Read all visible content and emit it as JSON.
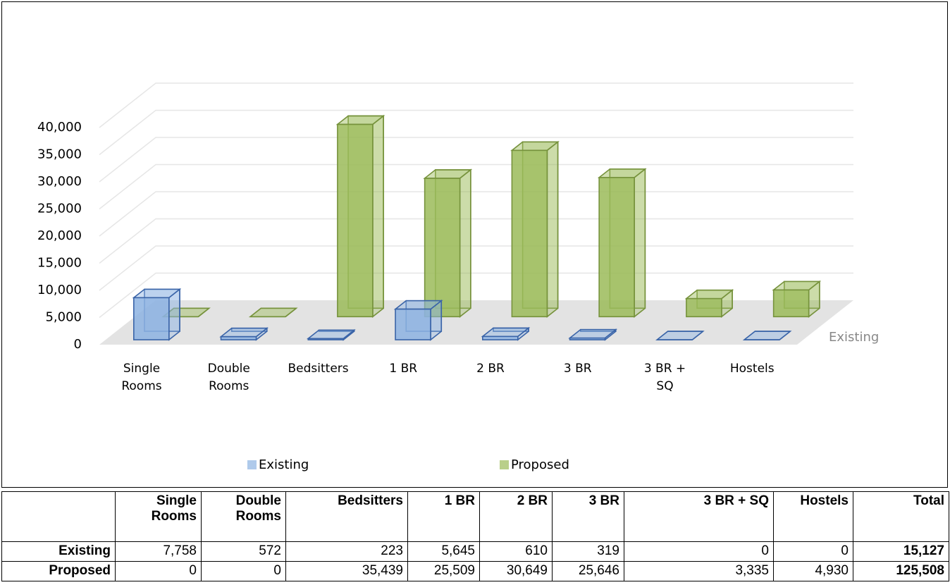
{
  "chart_data": {
    "type": "bar3d",
    "categories": [
      "Single Rooms",
      "Double Rooms",
      "Bedsitters",
      "1 BR",
      "2 BR",
      "3 BR",
      "3 BR + SQ",
      "Hostels"
    ],
    "series": [
      {
        "name": "Existing",
        "color": "#8db3e2",
        "values": [
          7758,
          572,
          223,
          5645,
          610,
          319,
          0,
          0
        ]
      },
      {
        "name": "Proposed",
        "color": "#9bbb59",
        "values": [
          0,
          0,
          35439,
          25509,
          30649,
          25646,
          3335,
          4930
        ]
      }
    ],
    "ylim": [
      0,
      40000
    ],
    "yticks": [
      0,
      {
        "value": 5000,
        "label": "5,000"
      },
      {
        "value": 10000,
        "label": "10,000"
      },
      {
        "value": 15000,
        "label": "15,000"
      },
      {
        "value": 20000,
        "label": "20,000"
      },
      {
        "value": 25000,
        "label": "25,000"
      },
      {
        "value": 30000,
        "label": "30,000"
      },
      {
        "value": 35000,
        "label": "35,000"
      },
      {
        "value": 40000,
        "label": "40,000"
      }
    ],
    "grid": true,
    "legend": "bottom"
  },
  "table": {
    "header": [
      "Single Rooms",
      "Double Rooms",
      "Bedsitters",
      "1 BR",
      "2 BR",
      "3 BR",
      "3 BR + SQ",
      "Hostels",
      "Total"
    ],
    "rows": [
      {
        "label": "Existing",
        "cells": [
          "7,758",
          "572",
          "223",
          "5,645",
          "610",
          "319",
          "0",
          "0",
          "15,127"
        ]
      },
      {
        "label": "Proposed",
        "cells": [
          "0",
          "0",
          "35,439",
          "25,509",
          "30,649",
          "25,646",
          "3,335",
          "4,930",
          "125,508"
        ]
      }
    ]
  }
}
